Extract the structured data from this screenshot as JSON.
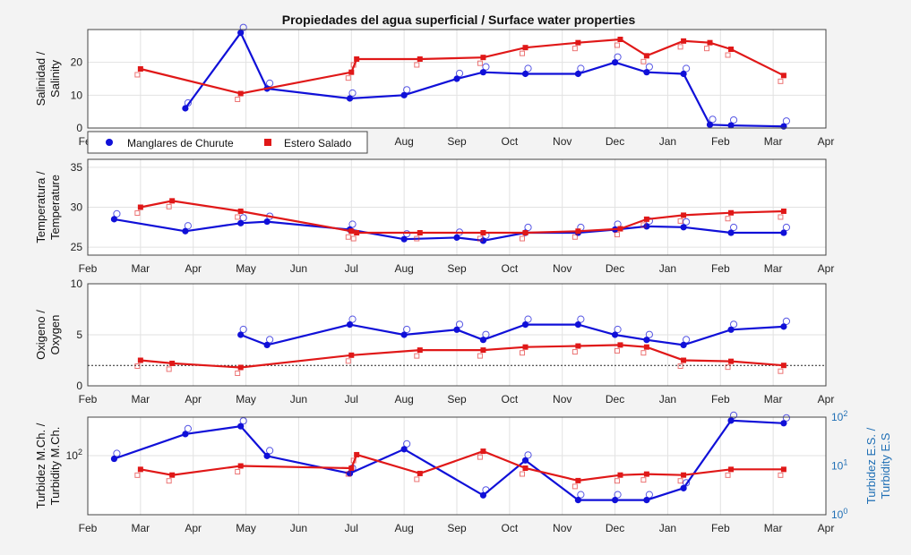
{
  "figure": {
    "title": "Propiedades del agua superficial / Surface water properties",
    "legend": [
      {
        "label": "Manglares de Churute",
        "color": "#1010d8",
        "marker": "circle"
      },
      {
        "label": "Estero Salado",
        "color": "#e01818",
        "marker": "square"
      }
    ],
    "colors": {
      "churute": "#1010d8",
      "salado": "#e01818",
      "right_axis": "#1f6fb5"
    }
  },
  "chart_data": [
    {
      "type": "line",
      "title": "Propiedades del agua superficial / Surface water properties",
      "ylabel": "Salinidad / Salinity",
      "ylim": [
        0,
        30
      ],
      "yticks": [
        "0",
        "10",
        "20"
      ],
      "xticks": [
        "Feb",
        "Mar",
        "Apr",
        "May",
        "Jun",
        "Jul",
        "Aug",
        "Sep",
        "Oct",
        "Nov",
        "Dec",
        "Jan",
        "Feb",
        "Mar",
        "Apr"
      ],
      "grid": true,
      "legend_position": "below-plot",
      "series": [
        {
          "name": "Manglares de Churute",
          "color": "#1010d8",
          "x": [
            1.85,
            2.9,
            3.4,
            4.97,
            6.0,
            7.0,
            7.5,
            8.3,
            9.3,
            10.0,
            10.6,
            11.3,
            11.8,
            12.2,
            13.2
          ],
          "y": [
            6.0,
            29.0,
            12.0,
            9.0,
            10.0,
            15.0,
            17.0,
            16.5,
            16.5,
            20.0,
            17.0,
            16.5,
            1.0,
            0.8,
            0.5
          ]
        },
        {
          "name": "Estero Salado",
          "color": "#e01818",
          "x": [
            1.0,
            2.9,
            5.0,
            5.1,
            6.3,
            7.5,
            8.3,
            9.3,
            10.1,
            10.6,
            11.3,
            11.8,
            12.2,
            13.2
          ],
          "y": [
            18.0,
            10.5,
            17.0,
            21.0,
            21.0,
            21.5,
            24.5,
            26.0,
            27.0,
            22.0,
            26.5,
            26.0,
            24.0,
            16.0
          ]
        }
      ]
    },
    {
      "type": "line",
      "ylabel": "Temperatura / Temperature",
      "ylim": [
        24,
        36
      ],
      "yticks": [
        "25",
        "30",
        "35"
      ],
      "xticks": [
        "Feb",
        "Mar",
        "Apr",
        "May",
        "Jun",
        "Jul",
        "Aug",
        "Sep",
        "Oct",
        "Nov",
        "Dec",
        "Jan",
        "Feb",
        "Mar",
        "Apr"
      ],
      "grid": true,
      "series": [
        {
          "name": "Manglares de Churute",
          "color": "#1010d8",
          "x": [
            0.5,
            1.85,
            2.9,
            3.4,
            4.97,
            6.0,
            7.0,
            7.5,
            8.3,
            9.3,
            10.0,
            10.6,
            11.3,
            12.2,
            13.2
          ],
          "y": [
            28.5,
            27.0,
            28.0,
            28.2,
            27.2,
            26.0,
            26.2,
            25.8,
            26.8,
            26.8,
            27.2,
            27.6,
            27.5,
            26.8,
            26.8
          ]
        },
        {
          "name": "Estero Salado",
          "color": "#e01818",
          "x": [
            1.0,
            1.6,
            2.9,
            5.0,
            5.1,
            6.3,
            7.5,
            8.3,
            9.3,
            10.1,
            10.6,
            11.3,
            12.2,
            13.2
          ],
          "y": [
            30.0,
            30.8,
            29.5,
            27.0,
            26.8,
            26.8,
            26.8,
            26.8,
            27.0,
            27.3,
            28.5,
            29.0,
            29.3,
            29.5
          ]
        }
      ]
    },
    {
      "type": "line",
      "ylabel": "Oxigeno / Oxygen",
      "ylim": [
        0,
        10
      ],
      "yticks": [
        "0",
        "5",
        "10"
      ],
      "reference_line": 2,
      "xticks": [
        "Feb",
        "Mar",
        "Apr",
        "May",
        "Jun",
        "Jul",
        "Aug",
        "Sep",
        "Oct",
        "Nov",
        "Dec",
        "Jan",
        "Feb",
        "Mar",
        "Apr"
      ],
      "grid": true,
      "series": [
        {
          "name": "Manglares de Churute",
          "color": "#1010d8",
          "x": [
            2.9,
            3.4,
            4.97,
            6.0,
            7.0,
            7.5,
            8.3,
            9.3,
            10.0,
            10.6,
            11.3,
            12.2,
            13.2
          ],
          "y": [
            5.0,
            4.0,
            6.0,
            5.0,
            5.5,
            4.5,
            6.0,
            6.0,
            5.0,
            4.5,
            4.0,
            5.5,
            5.8
          ]
        },
        {
          "name": "Estero Salado",
          "color": "#e01818",
          "x": [
            1.0,
            1.6,
            2.9,
            5.0,
            6.3,
            7.5,
            8.3,
            9.3,
            10.1,
            10.6,
            11.3,
            12.2,
            13.2
          ],
          "y": [
            2.5,
            2.2,
            1.8,
            3.0,
            3.5,
            3.5,
            3.8,
            3.9,
            4.0,
            3.8,
            2.5,
            2.4,
            2.0
          ]
        }
      ]
    },
    {
      "type": "line",
      "ylabel": "Turbidez M.Ch. / Turbidity M.Ch.",
      "yscale": "log",
      "ylim_left": [
        1,
        2000
      ],
      "yticks_left": [
        "10^2"
      ],
      "ylabel_right": "Turbidez E.S. / Turbidity E.S",
      "yscale_right": "log",
      "ylim_right": [
        1,
        100
      ],
      "yticks_right": [
        "10^0",
        "10^1",
        "10^2"
      ],
      "xticks": [
        "Feb",
        "Mar",
        "Apr",
        "May",
        "Jun",
        "Jul",
        "Aug",
        "Sep",
        "Oct",
        "Nov",
        "Dec",
        "Jan",
        "Feb",
        "Mar",
        "Apr"
      ],
      "grid": true,
      "series": [
        {
          "name": "Manglares de Churute",
          "color": "#1010d8",
          "axis": "right",
          "x": [
            0.5,
            1.85,
            2.9,
            3.4,
            4.97,
            6.0,
            7.5,
            8.3,
            9.3,
            10.0,
            10.6,
            11.3,
            12.2,
            13.2
          ],
          "y": [
            14.0,
            45.0,
            65.0,
            16.0,
            7.0,
            22.0,
            2.5,
            13.0,
            2.0,
            2.0,
            2.0,
            3.5,
            85.0,
            75.0
          ]
        },
        {
          "name": "Estero Salado",
          "color": "#e01818",
          "axis": "right",
          "x": [
            1.0,
            1.6,
            2.9,
            5.0,
            5.1,
            6.3,
            7.5,
            8.3,
            9.3,
            10.1,
            10.6,
            11.3,
            12.2,
            13.2
          ],
          "y": [
            8.5,
            6.5,
            10.0,
            9.0,
            17.0,
            7.0,
            20.0,
            9.0,
            5.0,
            6.5,
            6.8,
            6.5,
            8.5,
            8.5
          ]
        }
      ]
    }
  ]
}
